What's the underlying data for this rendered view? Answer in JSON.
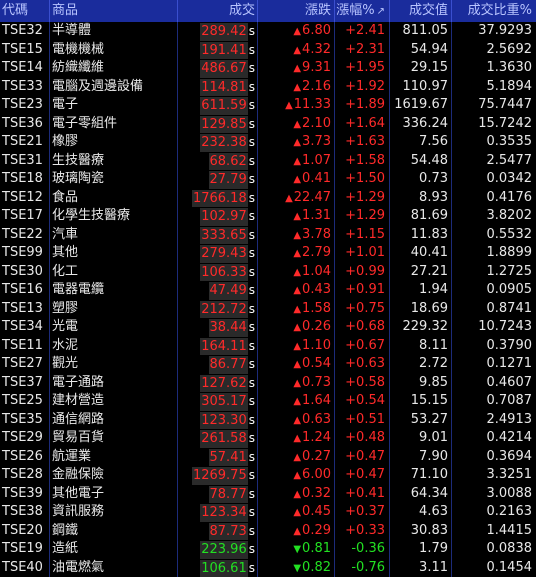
{
  "headers": [
    "代碼",
    "商品",
    "成交",
    "漲跌",
    "漲幅%",
    "成交值",
    "成交比重%"
  ],
  "sort_mark": "↗",
  "colors": {
    "up": "#ff2a2a",
    "down": "#22e022",
    "header_bg": "#1a2c9c"
  },
  "rows": [
    {
      "code": "TSE32",
      "name": "半導體",
      "price": "289.42",
      "flag": "s",
      "dir": "up",
      "change": "6.80",
      "pct": "+2.41",
      "value": "811.05",
      "share": "37.9293"
    },
    {
      "code": "TSE15",
      "name": "電機機械",
      "price": "191.41",
      "flag": "s",
      "dir": "up",
      "change": "4.32",
      "pct": "+2.31",
      "value": "54.94",
      "share": "2.5692"
    },
    {
      "code": "TSE14",
      "name": "紡織纖維",
      "price": "486.67",
      "flag": "s",
      "dir": "up",
      "change": "9.31",
      "pct": "+1.95",
      "value": "29.15",
      "share": "1.3630"
    },
    {
      "code": "TSE33",
      "name": "電腦及週邊設備",
      "price": "114.81",
      "flag": "s",
      "dir": "up",
      "change": "2.16",
      "pct": "+1.92",
      "value": "110.97",
      "share": "5.1894"
    },
    {
      "code": "TSE23",
      "name": "電子",
      "price": "611.59",
      "flag": "s",
      "dir": "up",
      "change": "11.33",
      "pct": "+1.89",
      "value": "1619.67",
      "share": "75.7447"
    },
    {
      "code": "TSE36",
      "name": "電子零組件",
      "price": "129.85",
      "flag": "s",
      "dir": "up",
      "change": "2.10",
      "pct": "+1.64",
      "value": "336.24",
      "share": "15.7242"
    },
    {
      "code": "TSE21",
      "name": "橡膠",
      "price": "232.38",
      "flag": "s",
      "dir": "up",
      "change": "3.73",
      "pct": "+1.63",
      "value": "7.56",
      "share": "0.3535"
    },
    {
      "code": "TSE31",
      "name": "生技醫療",
      "price": "68.62",
      "flag": "s",
      "dir": "up",
      "change": "1.07",
      "pct": "+1.58",
      "value": "54.48",
      "share": "2.5477"
    },
    {
      "code": "TSE18",
      "name": "玻璃陶瓷",
      "price": "27.79",
      "flag": "s",
      "dir": "up",
      "change": "0.41",
      "pct": "+1.50",
      "value": "0.73",
      "share": "0.0342"
    },
    {
      "code": "TSE12",
      "name": "食品",
      "price": "1766.18",
      "flag": "s",
      "dir": "up",
      "change": "22.47",
      "pct": "+1.29",
      "value": "8.93",
      "share": "0.4176"
    },
    {
      "code": "TSE17",
      "name": "化學生技醫療",
      "price": "102.97",
      "flag": "s",
      "dir": "up",
      "change": "1.31",
      "pct": "+1.29",
      "value": "81.69",
      "share": "3.8202"
    },
    {
      "code": "TSE22",
      "name": "汽車",
      "price": "333.65",
      "flag": "s",
      "dir": "up",
      "change": "3.78",
      "pct": "+1.15",
      "value": "11.83",
      "share": "0.5532"
    },
    {
      "code": "TSE99",
      "name": "其他",
      "price": "279.43",
      "flag": "s",
      "dir": "up",
      "change": "2.79",
      "pct": "+1.01",
      "value": "40.41",
      "share": "1.8899"
    },
    {
      "code": "TSE30",
      "name": "化工",
      "price": "106.33",
      "flag": "s",
      "dir": "up",
      "change": "1.04",
      "pct": "+0.99",
      "value": "27.21",
      "share": "1.2725"
    },
    {
      "code": "TSE16",
      "name": "電器電纜",
      "price": "47.49",
      "flag": "s",
      "dir": "up",
      "change": "0.43",
      "pct": "+0.91",
      "value": "1.94",
      "share": "0.0905"
    },
    {
      "code": "TSE13",
      "name": "塑膠",
      "price": "212.72",
      "flag": "s",
      "dir": "up",
      "change": "1.58",
      "pct": "+0.75",
      "value": "18.69",
      "share": "0.8741"
    },
    {
      "code": "TSE34",
      "name": "光電",
      "price": "38.44",
      "flag": "s",
      "dir": "up",
      "change": "0.26",
      "pct": "+0.68",
      "value": "229.32",
      "share": "10.7243"
    },
    {
      "code": "TSE11",
      "name": "水泥",
      "price": "164.11",
      "flag": "s",
      "dir": "up",
      "change": "1.10",
      "pct": "+0.67",
      "value": "8.11",
      "share": "0.3790"
    },
    {
      "code": "TSE27",
      "name": "觀光",
      "price": "86.77",
      "flag": "s",
      "dir": "up",
      "change": "0.54",
      "pct": "+0.63",
      "value": "2.72",
      "share": "0.1271"
    },
    {
      "code": "TSE37",
      "name": "電子通路",
      "price": "127.62",
      "flag": "s",
      "dir": "up",
      "change": "0.73",
      "pct": "+0.58",
      "value": "9.85",
      "share": "0.4607"
    },
    {
      "code": "TSE25",
      "name": "建材營造",
      "price": "305.17",
      "flag": "s",
      "dir": "up",
      "change": "1.64",
      "pct": "+0.54",
      "value": "15.15",
      "share": "0.7087"
    },
    {
      "code": "TSE35",
      "name": "通信網路",
      "price": "123.30",
      "flag": "s",
      "dir": "up",
      "change": "0.63",
      "pct": "+0.51",
      "value": "53.27",
      "share": "2.4913"
    },
    {
      "code": "TSE29",
      "name": "貿易百貨",
      "price": "261.58",
      "flag": "s",
      "dir": "up",
      "change": "1.24",
      "pct": "+0.48",
      "value": "9.01",
      "share": "0.4214"
    },
    {
      "code": "TSE26",
      "name": "航運業",
      "price": "57.41",
      "flag": "s",
      "dir": "up",
      "change": "0.27",
      "pct": "+0.47",
      "value": "7.90",
      "share": "0.3694"
    },
    {
      "code": "TSE28",
      "name": "金融保險",
      "price": "1269.75",
      "flag": "s",
      "dir": "up",
      "change": "6.00",
      "pct": "+0.47",
      "value": "71.10",
      "share": "3.3251"
    },
    {
      "code": "TSE39",
      "name": "其他電子",
      "price": "78.77",
      "flag": "s",
      "dir": "up",
      "change": "0.32",
      "pct": "+0.41",
      "value": "64.34",
      "share": "3.0088"
    },
    {
      "code": "TSE38",
      "name": "資訊服務",
      "price": "123.34",
      "flag": "s",
      "dir": "up",
      "change": "0.45",
      "pct": "+0.37",
      "value": "4.63",
      "share": "0.2163"
    },
    {
      "code": "TSE20",
      "name": "鋼鐵",
      "price": "87.73",
      "flag": "s",
      "dir": "up",
      "change": "0.29",
      "pct": "+0.33",
      "value": "30.83",
      "share": "1.4415"
    },
    {
      "code": "TSE19",
      "name": "造紙",
      "price": "223.96",
      "flag": "s",
      "dir": "down",
      "change": "0.81",
      "pct": "-0.36",
      "value": "1.79",
      "share": "0.0838"
    },
    {
      "code": "TSE40",
      "name": "油電燃氣",
      "price": "106.61",
      "flag": "s",
      "dir": "down",
      "change": "0.82",
      "pct": "-0.76",
      "value": "3.11",
      "share": "0.1454"
    }
  ]
}
